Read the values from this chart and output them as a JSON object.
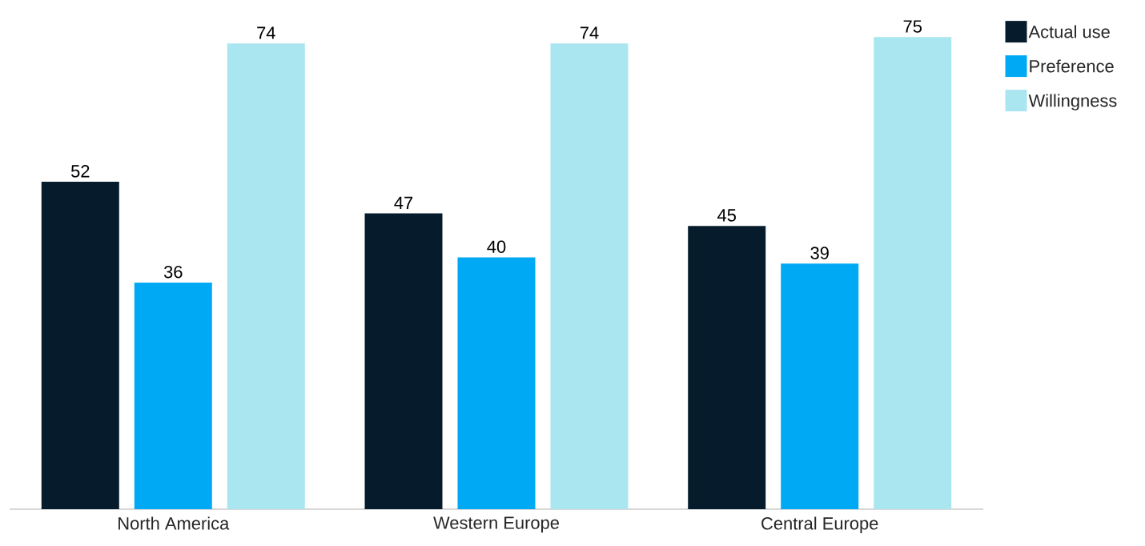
{
  "chart_data": {
    "type": "bar",
    "categories": [
      "North America",
      "Western Europe",
      "Central Europe"
    ],
    "series": [
      {
        "name": "Actual use",
        "color": "#061c2c",
        "values": [
          52,
          47,
          45
        ]
      },
      {
        "name": "Preference",
        "color": "#00a9f4",
        "values": [
          36,
          40,
          39
        ]
      },
      {
        "name": "Willingness",
        "color": "#aae6f0",
        "values": [
          74,
          74,
          75
        ]
      }
    ],
    "data_labels": true,
    "legend": "top right"
  }
}
